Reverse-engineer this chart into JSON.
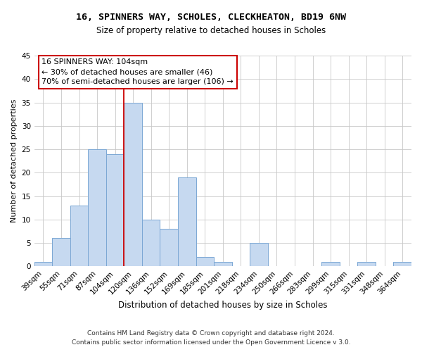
{
  "title1": "16, SPINNERS WAY, SCHOLES, CLECKHEATON, BD19 6NW",
  "title2": "Size of property relative to detached houses in Scholes",
  "xlabel": "Distribution of detached houses by size in Scholes",
  "ylabel": "Number of detached properties",
  "footer1": "Contains HM Land Registry data © Crown copyright and database right 2024.",
  "footer2": "Contains public sector information licensed under the Open Government Licence v 3.0.",
  "annotation_title": "16 SPINNERS WAY: 104sqm",
  "annotation_line1": "← 30% of detached houses are smaller (46)",
  "annotation_line2": "70% of semi-detached houses are larger (106) →",
  "bar_labels": [
    "39sqm",
    "55sqm",
    "71sqm",
    "87sqm",
    "104sqm",
    "120sqm",
    "136sqm",
    "152sqm",
    "169sqm",
    "185sqm",
    "201sqm",
    "218sqm",
    "234sqm",
    "250sqm",
    "266sqm",
    "283sqm",
    "299sqm",
    "315sqm",
    "331sqm",
    "348sqm",
    "364sqm"
  ],
  "bar_values": [
    1,
    6,
    13,
    25,
    24,
    35,
    10,
    8,
    19,
    2,
    1,
    0,
    5,
    0,
    0,
    0,
    1,
    0,
    1,
    0,
    1
  ],
  "bar_color": "#c6d9f0",
  "bar_edge_color": "#7ba7d4",
  "property_line_index": 4,
  "ylim": [
    0,
    45
  ],
  "yticks": [
    0,
    5,
    10,
    15,
    20,
    25,
    30,
    35,
    40,
    45
  ],
  "annotation_box_color": "#ffffff",
  "annotation_box_edge": "#cc0000",
  "background_color": "#ffffff",
  "grid_color": "#c8c8c8",
  "title1_fontsize": 9.5,
  "title2_fontsize": 8.5,
  "xlabel_fontsize": 8.5,
  "ylabel_fontsize": 8.0,
  "tick_fontsize": 7.5,
  "footer_fontsize": 6.5
}
